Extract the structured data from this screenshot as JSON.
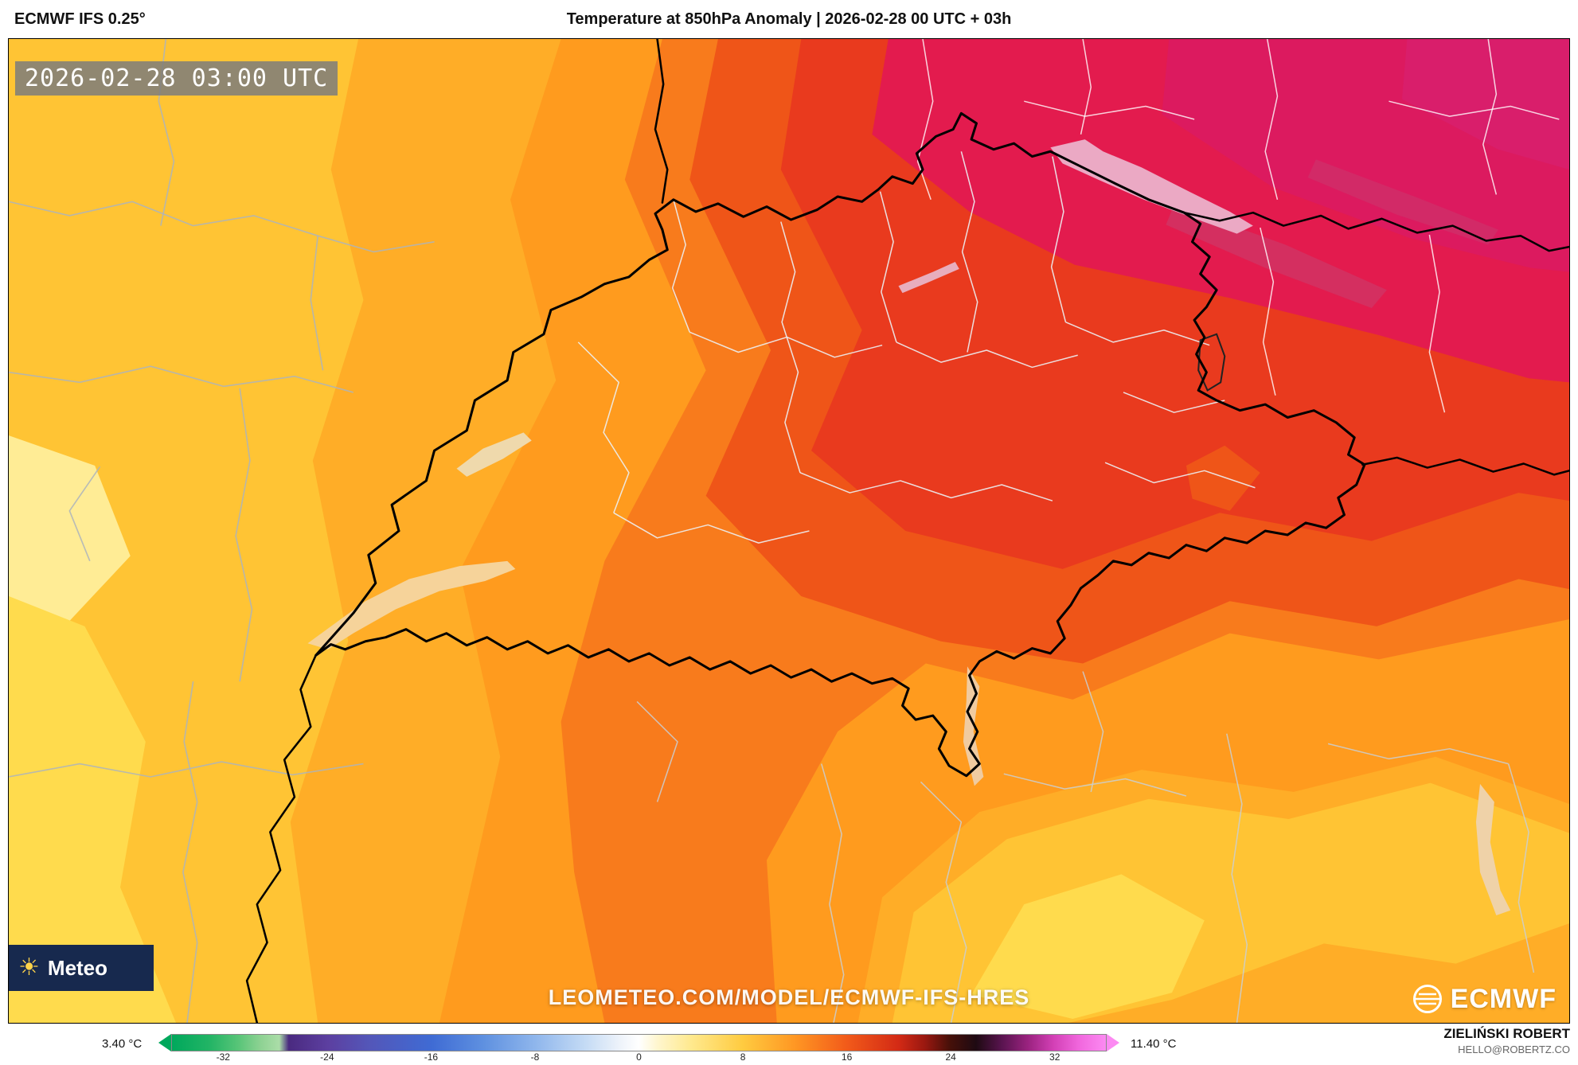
{
  "header": {
    "model_label": "ECMWF IFS 0.25°",
    "title": "Temperature at 850hPa Anomaly | 2026-02-28 00 UTC + 03h"
  },
  "map": {
    "timestamp_badge": "2026-02-28 03:00 UTC",
    "watermark": "LEOMETEO.COM/MODEL/ECMWF-IFS-HRES",
    "ecmwf_logo_text": "ECMWF",
    "corner_logo_text": "Meteo",
    "sun_icon": "☀",
    "palette": {
      "pale_yellow": "#FFEC95",
      "bright_yellow": "#FFDB4D",
      "yellow": "#FFC434",
      "yellow_orange": "#FFAD27",
      "orange": "#FF9B1E",
      "dark_orange": "#F87B1C",
      "red_orange": "#EF5518",
      "red": "#E93A1E",
      "crimson": "#E31B4E",
      "deep_pink": "#DC1A5F",
      "corner_pink": "#D91E6B"
    }
  },
  "footer": {
    "min_label": "3.40 °C",
    "max_label": "11.40 °C",
    "credit_name": "ZIELIŃSKI ROBERT",
    "credit_email": "HELLO@ROBERTZ.CO",
    "colorbar": {
      "range": [
        -36,
        36
      ],
      "ticks": [
        "-32",
        "-24",
        "-16",
        "-8",
        "0",
        "8",
        "16",
        "24",
        "32"
      ],
      "unit": "°C",
      "stops": [
        [
          0,
          "#00A85C"
        ],
        [
          4,
          "#22B465"
        ],
        [
          7,
          "#56C477"
        ],
        [
          9.5,
          "#8ED293"
        ],
        [
          11.5,
          "#ABDDA8"
        ],
        [
          12.5,
          "#4A2A80"
        ],
        [
          16.7,
          "#5C3FA0"
        ],
        [
          21,
          "#5456B8"
        ],
        [
          27.8,
          "#3F6BD4"
        ],
        [
          33.3,
          "#5E90E0"
        ],
        [
          38.9,
          "#8FB6EC"
        ],
        [
          44.4,
          "#C6DCF5"
        ],
        [
          48,
          "#EEF3FA"
        ],
        [
          50,
          "#FFFFFF"
        ],
        [
          52,
          "#FFF6CE"
        ],
        [
          55.6,
          "#FFE98E"
        ],
        [
          61.1,
          "#FFCB40"
        ],
        [
          66.7,
          "#FF9723"
        ],
        [
          72.2,
          "#F25B1A"
        ],
        [
          77.8,
          "#D32A15"
        ],
        [
          80.6,
          "#9A1810"
        ],
        [
          83.3,
          "#461009"
        ],
        [
          86.1,
          "#1E0A12"
        ],
        [
          88.9,
          "#5A1450"
        ],
        [
          91.7,
          "#9B2380"
        ],
        [
          94.4,
          "#D340B6"
        ],
        [
          97.2,
          "#F168DE"
        ],
        [
          100,
          "#FC8AF2"
        ]
      ]
    }
  }
}
